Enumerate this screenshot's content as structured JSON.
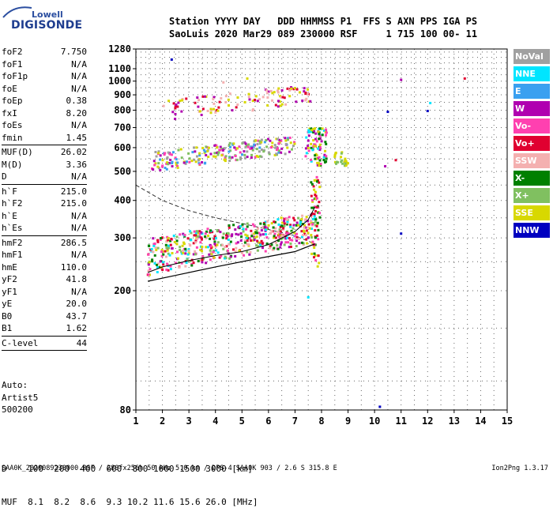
{
  "logo": {
    "brand": "Lowell",
    "product": "DIGISONDE"
  },
  "header": {
    "line1": "Station YYYY DAY   DDD HHMMSS P1  FFS S AXN PPS IGA PS",
    "line2": "SaoLuis 2020 Mar29 089 230000 RSF     1 715 100 00- 11"
  },
  "params": [
    {
      "name": "foF2",
      "value": "7.750"
    },
    {
      "name": "foF1",
      "value": "N/A"
    },
    {
      "name": "foF1p",
      "value": "N/A"
    },
    {
      "name": "foE",
      "value": "N/A"
    },
    {
      "name": "foEp",
      "value": "0.38"
    },
    {
      "name": "fxI",
      "value": "8.20"
    },
    {
      "name": "foEs",
      "value": "N/A"
    },
    {
      "name": "fmin",
      "value": "1.45"
    },
    {
      "sep": true
    },
    {
      "name": "MUF(D)",
      "value": "26.02"
    },
    {
      "name": "M(D)",
      "value": "3.36"
    },
    {
      "name": "D",
      "value": "N/A"
    },
    {
      "sep": true
    },
    {
      "name": "h`F",
      "value": "215.0"
    },
    {
      "name": "h`F2",
      "value": "215.0"
    },
    {
      "name": "h`E",
      "value": "N/A"
    },
    {
      "name": "h`Es",
      "value": "N/A"
    },
    {
      "sep": true
    },
    {
      "name": "hmF2",
      "value": "286.5"
    },
    {
      "name": "hmF1",
      "value": "N/A"
    },
    {
      "name": "hmE",
      "value": "110.0"
    },
    {
      "name": "yF2",
      "value": "41.8"
    },
    {
      "name": "yF1",
      "value": "N/A"
    },
    {
      "name": "yE",
      "value": "20.0"
    },
    {
      "name": "B0",
      "value": "43.7"
    },
    {
      "name": "B1",
      "value": "1.62"
    },
    {
      "sep": true
    },
    {
      "name": "C-level",
      "value": "44"
    },
    {
      "sep": true
    }
  ],
  "auto": {
    "line1": "Auto:",
    "line2": "Artist5",
    "line3": "500200"
  },
  "legend": [
    {
      "label": "NoVal",
      "color": "#a0a0a0"
    },
    {
      "label": "NNE",
      "color": "#00e5ff"
    },
    {
      "label": "E",
      "color": "#3aa0f0"
    },
    {
      "label": "W",
      "color": "#b000b0"
    },
    {
      "label": "Vo-",
      "color": "#ff40b0"
    },
    {
      "label": "Vo+",
      "color": "#e00030"
    },
    {
      "label": "SSW",
      "color": "#f4b0b0"
    },
    {
      "label": "X-",
      "color": "#008000"
    },
    {
      "label": "X+",
      "color": "#80c060"
    },
    {
      "label": "SSE",
      "color": "#d8d800"
    },
    {
      "label": "NNW",
      "color": "#0000c0"
    }
  ],
  "muf_table": {
    "line1": "D    100  200  400  600  800 1000 1500 3000 [km]",
    "line2": "MUF  8.1  8.2  8.6  9.3 10.2 11.6 15.6 26.0 [MHz]"
  },
  "footer": {
    "left": "SAA0K_2020089230000.RSF / 280fx256h 50 kHz 5.0 km / DPS-4 SAA0K 903 / 2.6 S 315.8 E",
    "right": "Ion2Png 1.3.17"
  },
  "chart_data": {
    "type": "scatter",
    "xlim": [
      1,
      15
    ],
    "ylim": [
      80,
      1280
    ],
    "x_ticks": [
      1,
      2,
      3,
      4,
      5,
      6,
      7,
      8,
      9,
      10,
      11,
      12,
      13,
      14,
      15
    ],
    "y_ticks": [
      80,
      200,
      300,
      400,
      500,
      600,
      700,
      800,
      900,
      1000,
      1100,
      1280
    ],
    "y_scale": "log",
    "grid": true,
    "legend_placement": "right",
    "virtual_height_trace": {
      "x": [
        1.45,
        2.0,
        3.0,
        4.0,
        5.0,
        6.0,
        7.0,
        7.5,
        7.75
      ],
      "y": [
        230,
        240,
        252,
        262,
        270,
        285,
        315,
        345,
        380
      ]
    },
    "profile_curve_solid": {
      "x": [
        1.45,
        2.5,
        4.0,
        5.5,
        7.0,
        7.75
      ],
      "y": [
        215,
        225,
        240,
        255,
        270,
        286.5
      ]
    },
    "profile_curve_dashed": {
      "x": [
        1.0,
        2.0,
        3.0,
        4.0,
        5.0,
        6.0,
        7.0,
        7.75
      ],
      "y": [
        450,
        400,
        370,
        350,
        335,
        320,
        305,
        286.5
      ]
    },
    "clusters": [
      {
        "xs": [
          1.45,
          7.8
        ],
        "y0": 225,
        "y1": 300,
        "slope": 10,
        "n": 520,
        "colors": [
          "#e00030",
          "#ff40b0",
          "#008000",
          "#d8d800",
          "#b000b0",
          "#80c060",
          "#00e5ff",
          "#f4b0b0"
        ]
      },
      {
        "xs": [
          1.6,
          7.0
        ],
        "y0": 500,
        "y1": 580,
        "slope": 14,
        "n": 230,
        "colors": [
          "#d8d800",
          "#b000b0",
          "#ff40b0",
          "#80c060",
          "#a0a0a0",
          "#3aa0f0"
        ]
      },
      {
        "xs": [
          2.0,
          7.6
        ],
        "y0": 730,
        "y1": 860,
        "slope": 20,
        "n": 110,
        "colors": [
          "#d8d800",
          "#e00030",
          "#b000b0",
          "#f4b0b0"
        ]
      },
      {
        "xs": [
          7.4,
          8.2
        ],
        "y0": 520,
        "y1": 700,
        "slope": 0,
        "n": 90,
        "colors": [
          "#d8d800",
          "#b000b0",
          "#008000",
          "#ff40b0",
          "#00e5ff"
        ]
      },
      {
        "xs": [
          7.6,
          7.95
        ],
        "y0": 240,
        "y1": 480,
        "slope": 0,
        "n": 60,
        "colors": [
          "#ff40b0",
          "#e00030",
          "#d8d800",
          "#008000"
        ]
      },
      {
        "xs": [
          8.5,
          9.0
        ],
        "y0": 520,
        "y1": 580,
        "slope": 0,
        "n": 25,
        "colors": [
          "#d8d800",
          "#80c060"
        ]
      }
    ],
    "isolated_points": [
      {
        "x": 2.35,
        "y": 1180,
        "color": "#0000c0"
      },
      {
        "x": 11.0,
        "y": 1010,
        "color": "#b000b0"
      },
      {
        "x": 13.4,
        "y": 1020,
        "color": "#e00030"
      },
      {
        "x": 10.5,
        "y": 790,
        "color": "#0000c0"
      },
      {
        "x": 12.0,
        "y": 795,
        "color": "#0000c0"
      },
      {
        "x": 12.1,
        "y": 845,
        "color": "#00e5ff"
      },
      {
        "x": 10.8,
        "y": 545,
        "color": "#e00030"
      },
      {
        "x": 10.4,
        "y": 520,
        "color": "#b000b0"
      },
      {
        "x": 11.0,
        "y": 310,
        "color": "#0000c0"
      },
      {
        "x": 10.2,
        "y": 82,
        "color": "#0000c0"
      },
      {
        "x": 7.5,
        "y": 190,
        "color": "#00e5ff"
      },
      {
        "x": 5.2,
        "y": 1020,
        "color": "#d8d800"
      },
      {
        "x": 4.3,
        "y": 990,
        "color": "#f4b0b0"
      }
    ]
  }
}
